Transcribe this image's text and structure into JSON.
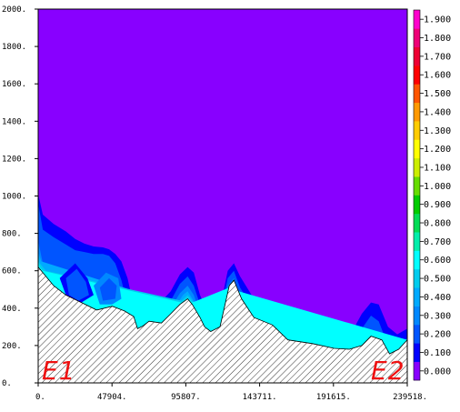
{
  "chart_data": {
    "type": "contour-section",
    "xlim": [
      0,
      239518
    ],
    "ylim": [
      0,
      2000
    ],
    "x_ticks": [
      0,
      47904,
      95807,
      143711,
      191615,
      239518
    ],
    "x_tick_labels": [
      "0.",
      "47904.",
      "95807.",
      "143711.",
      "191615.",
      "239518."
    ],
    "y_ticks": [
      0,
      200,
      400,
      600,
      800,
      1000,
      1200,
      1400,
      1600,
      1800,
      2000
    ],
    "y_tick_labels": [
      "0.",
      "200.",
      "400.",
      "600.",
      "800.",
      "1000.",
      "1200.",
      "1400.",
      "1600.",
      "1800.",
      "2000."
    ],
    "endpoints": {
      "left": "E1",
      "right": "E2"
    },
    "background_color": "#8800ff",
    "terrain": [
      [
        0,
        620
      ],
      [
        3000,
        590
      ],
      [
        10000,
        520
      ],
      [
        18000,
        470
      ],
      [
        28000,
        430
      ],
      [
        38000,
        390
      ],
      [
        48000,
        410
      ],
      [
        56000,
        385
      ],
      [
        62000,
        355
      ],
      [
        64500,
        290
      ],
      [
        68000,
        305
      ],
      [
        72000,
        330
      ],
      [
        80000,
        320
      ],
      [
        86000,
        370
      ],
      [
        92000,
        420
      ],
      [
        97000,
        450
      ],
      [
        100000,
        420
      ],
      [
        105000,
        350
      ],
      [
        108000,
        300
      ],
      [
        112000,
        275
      ],
      [
        118000,
        300
      ],
      [
        124000,
        520
      ],
      [
        127000,
        550
      ],
      [
        132000,
        450
      ],
      [
        140000,
        350
      ],
      [
        152000,
        310
      ],
      [
        162000,
        230
      ],
      [
        178000,
        210
      ],
      [
        192000,
        185
      ],
      [
        202000,
        180
      ],
      [
        210000,
        200
      ],
      [
        216000,
        250
      ],
      [
        223000,
        230
      ],
      [
        228000,
        155
      ],
      [
        234000,
        180
      ],
      [
        239518,
        230
      ]
    ],
    "contours": [
      {
        "level": 0.1,
        "color": "#0000ff",
        "top": [
          [
            0,
            1010
          ],
          [
            3000,
            900
          ],
          [
            10000,
            850
          ],
          [
            18000,
            810
          ],
          [
            24000,
            770
          ],
          [
            30000,
            745
          ],
          [
            36000,
            730
          ],
          [
            42000,
            725
          ],
          [
            46000,
            715
          ],
          [
            50000,
            690
          ],
          [
            54000,
            650
          ],
          [
            58000,
            560
          ],
          [
            61500,
            430
          ],
          [
            63500,
            320
          ],
          [
            67000,
            390
          ],
          [
            71000,
            400
          ],
          [
            78000,
            420
          ],
          [
            86000,
            490
          ],
          [
            92000,
            580
          ],
          [
            97000,
            620
          ],
          [
            101000,
            590
          ],
          [
            105000,
            470
          ],
          [
            110000,
            380
          ],
          [
            114000,
            375
          ],
          [
            118000,
            400
          ],
          [
            123000,
            600
          ],
          [
            127000,
            640
          ],
          [
            131000,
            570
          ],
          [
            140000,
            450
          ],
          [
            152000,
            370
          ],
          [
            165000,
            310
          ],
          [
            180000,
            280
          ],
          [
            195000,
            250
          ],
          [
            204000,
            280
          ],
          [
            210000,
            370
          ],
          [
            216000,
            430
          ],
          [
            221000,
            420
          ],
          [
            227000,
            300
          ],
          [
            233000,
            260
          ],
          [
            239518,
            290
          ]
        ]
      },
      {
        "level": 0.2,
        "color": "#0055ff",
        "top": [
          [
            0,
            960
          ],
          [
            3000,
            820
          ],
          [
            10000,
            780
          ],
          [
            18000,
            740
          ],
          [
            24000,
            710
          ],
          [
            30000,
            700
          ],
          [
            36000,
            690
          ],
          [
            42000,
            690
          ],
          [
            46000,
            680
          ],
          [
            50000,
            640
          ],
          [
            54000,
            550
          ],
          [
            58000,
            420
          ],
          [
            61000,
            360
          ],
          [
            64000,
            300
          ],
          [
            70000,
            340
          ],
          [
            78000,
            350
          ],
          [
            86000,
            440
          ],
          [
            92000,
            530
          ],
          [
            97000,
            570
          ],
          [
            101000,
            520
          ],
          [
            105000,
            420
          ],
          [
            110000,
            330
          ],
          [
            114000,
            320
          ],
          [
            118000,
            360
          ],
          [
            123000,
            560
          ],
          [
            127000,
            600
          ],
          [
            131000,
            510
          ],
          [
            140000,
            390
          ],
          [
            152000,
            330
          ],
          [
            162000,
            250
          ],
          [
            178000,
            230
          ],
          [
            192000,
            210
          ],
          [
            204000,
            200
          ],
          [
            210000,
            290
          ],
          [
            216000,
            360
          ],
          [
            221000,
            330
          ],
          [
            227000,
            200
          ],
          [
            233000,
            200
          ],
          [
            239518,
            240
          ]
        ]
      },
      {
        "level": 0.3,
        "color": "#0088ff",
        "top": [
          [
            0,
            760
          ],
          [
            1500,
            700
          ],
          [
            3000,
            640
          ],
          [
            10000,
            560
          ],
          [
            18000,
            510
          ],
          [
            28000,
            470
          ],
          [
            38000,
            420
          ],
          [
            48000,
            440
          ],
          [
            56000,
            410
          ],
          [
            62000,
            370
          ],
          [
            64500,
            290
          ],
          [
            78000,
            330
          ],
          [
            86000,
            400
          ],
          [
            92000,
            480
          ],
          [
            97000,
            520
          ],
          [
            101000,
            470
          ],
          [
            106000,
            350
          ],
          [
            112000,
            280
          ],
          [
            118000,
            320
          ],
          [
            123000,
            520
          ],
          [
            127000,
            560
          ],
          [
            131000,
            470
          ],
          [
            140000,
            360
          ],
          [
            152000,
            310
          ],
          [
            162000,
            230
          ],
          [
            190000,
            190
          ],
          [
            212000,
            220
          ],
          [
            216000,
            280
          ],
          [
            221000,
            250
          ],
          [
            228000,
            160
          ],
          [
            239518,
            230
          ]
        ]
      },
      {
        "level": 0.4,
        "color": "#00aaff",
        "top": [
          [
            0,
            700
          ],
          [
            2000,
            650
          ],
          [
            90000,
            420
          ],
          [
            94000,
            470
          ],
          [
            97000,
            490
          ],
          [
            100000,
            450
          ],
          [
            104000,
            400
          ],
          [
            118000,
            300
          ],
          [
            122000,
            500
          ],
          [
            127000,
            550
          ],
          [
            132000,
            460
          ],
          [
            239518,
            230
          ]
        ]
      },
      {
        "level": 0.5,
        "color": "#00ccee",
        "top": [
          [
            0,
            690
          ],
          [
            1000,
            640
          ],
          [
            5000,
            600
          ],
          [
            93000,
            440
          ],
          [
            97000,
            470
          ],
          [
            100000,
            440
          ],
          [
            118000,
            300
          ],
          [
            123000,
            500
          ],
          [
            127000,
            535
          ],
          [
            131000,
            470
          ],
          [
            239518,
            230
          ]
        ]
      },
      {
        "level": 0.6,
        "color": "#00ffff",
        "top": [
          [
            0,
            660
          ],
          [
            1000,
            620
          ],
          [
            3000,
            600
          ],
          [
            93000,
            430
          ],
          [
            97000,
            455
          ],
          [
            100000,
            430
          ],
          [
            124000,
            510
          ],
          [
            127000,
            520
          ],
          [
            130000,
            490
          ],
          [
            239518,
            230
          ]
        ]
      }
    ],
    "shallow_pockets": [
      {
        "color": "#0000ff",
        "points": [
          [
            14000,
            560
          ],
          [
            24000,
            640
          ],
          [
            32000,
            560
          ],
          [
            36000,
            470
          ],
          [
            28000,
            430
          ],
          [
            18000,
            470
          ]
        ]
      },
      {
        "color": "#0055ff",
        "points": [
          [
            18000,
            560
          ],
          [
            25000,
            610
          ],
          [
            31000,
            540
          ],
          [
            33000,
            470
          ],
          [
            26000,
            440
          ],
          [
            20000,
            470
          ]
        ]
      },
      {
        "color": "#0088ff",
        "points": [
          [
            36000,
            520
          ],
          [
            44000,
            590
          ],
          [
            52000,
            560
          ],
          [
            54000,
            450
          ],
          [
            48000,
            420
          ],
          [
            40000,
            420
          ]
        ]
      },
      {
        "color": "#0055ff",
        "points": [
          [
            40000,
            510
          ],
          [
            46000,
            560
          ],
          [
            51000,
            520
          ],
          [
            50000,
            450
          ],
          [
            42000,
            440
          ]
        ]
      }
    ],
    "colorbar": {
      "levels": [
        0.0,
        0.1,
        0.2,
        0.3,
        0.4,
        0.5,
        0.6,
        0.7,
        0.8,
        0.9,
        1.0,
        1.1,
        1.2,
        1.3,
        1.4,
        1.5,
        1.6,
        1.7,
        1.8,
        1.9
      ],
      "labels": [
        "0.000",
        "0.100",
        "0.200",
        "0.300",
        "0.400",
        "0.500",
        "0.600",
        "0.700",
        "0.800",
        "0.900",
        "1.000",
        "1.100",
        "1.200",
        "1.300",
        "1.400",
        "1.500",
        "1.600",
        "1.700",
        "1.800",
        "1.900"
      ],
      "colors": [
        "#8800ff",
        "#0000ff",
        "#0055ff",
        "#0088ff",
        "#00aaff",
        "#00ccee",
        "#00ffff",
        "#00eeaa",
        "#00dd55",
        "#00cc00",
        "#66dd00",
        "#ccee00",
        "#ffff00",
        "#ffcc00",
        "#ff9900",
        "#ff5500",
        "#ff0000",
        "#ee0033",
        "#ee0077",
        "#ff00cc"
      ]
    }
  }
}
